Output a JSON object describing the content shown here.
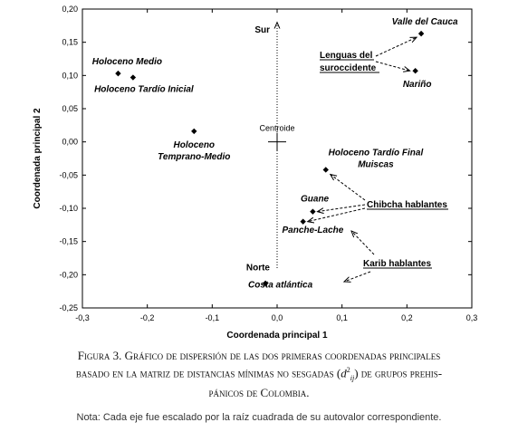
{
  "chart_data": {
    "type": "scatter",
    "title": "",
    "xlabel": "Coordenada principal 1",
    "ylabel": "Coordenada principal 2",
    "xlim": [
      -0.3,
      0.3
    ],
    "ylim": [
      -0.25,
      0.2
    ],
    "x_ticks": [
      "-0,3",
      "-0,2",
      "-0,1",
      "0,0",
      "0,1",
      "0,2",
      "0,3"
    ],
    "y_ticks": [
      "0,20",
      "0,15",
      "0,10",
      "0,05",
      "0,00",
      "-0,05",
      "-0,10",
      "-0,15",
      "-0,20",
      "-0,25"
    ],
    "points": [
      {
        "label": "Valle del Cauca",
        "x": 0.222,
        "y": 0.163
      },
      {
        "label": "Nariño",
        "x": 0.213,
        "y": 0.107
      },
      {
        "label": "Holoceno Medio",
        "x": -0.245,
        "y": 0.103
      },
      {
        "label": "Holoceno Tardío Inicial",
        "x": -0.222,
        "y": 0.097
      },
      {
        "label": "Holoceno Temprano-Medio",
        "x": -0.128,
        "y": 0.016
      },
      {
        "label": "Holoceno Tardío Final Muiscas",
        "x": 0.075,
        "y": -0.042
      },
      {
        "label": "Guane",
        "x": 0.055,
        "y": -0.105
      },
      {
        "label": "Panche-Lache",
        "x": 0.04,
        "y": -0.12
      },
      {
        "label": "Costa atlántica",
        "x": -0.018,
        "y": -0.213
      }
    ],
    "annotations": {
      "centroid": "Centroide",
      "north": "Norte",
      "south": "Sur",
      "lenguas": "Lenguas del suroccidente",
      "chibcha": "Chibcha hablantes",
      "karib": "Karib hablantes"
    }
  },
  "caption": {
    "text": "Figura 3. Gráfico de dispersión de las dos primeras coordenadas principales basado en la matriz de distancias mínimas no sesgadas (d²ij) de grupos prehispánicos de Colombia.",
    "line1": "Figura 3. Gráfico de dispersión de las dos primeras coordenadas principales",
    "line2a": "basado en la matriz de distancias mínimas no sesgadas (",
    "math_d": "d",
    "math_sup": "2",
    "math_sub": "ij",
    "line2b": ") de grupos prehis-",
    "line3": "pánicos de Colombia."
  },
  "note": "Nota: Cada eje fue escalado por la raíz cuadrada de su autovalor correspondiente."
}
